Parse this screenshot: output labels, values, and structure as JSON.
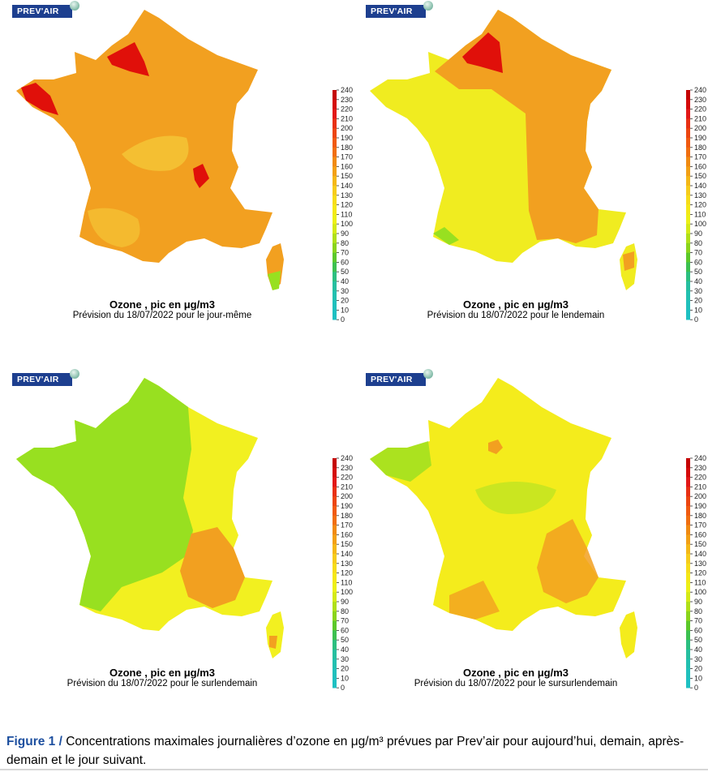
{
  "logo_text": "PREV'AIR",
  "colorbar": {
    "ticks": [
      "240",
      "230",
      "220",
      "210",
      "200",
      "190",
      "180",
      "170",
      "160",
      "150",
      "140",
      "130",
      "120",
      "110",
      "100",
      "90",
      "80",
      "70",
      "60",
      "50",
      "40",
      "30",
      "20",
      "10",
      "0"
    ],
    "colors": [
      "#c40000",
      "#d40a0a",
      "#e21818",
      "#e83014",
      "#ec4510",
      "#f05a10",
      "#f06e10",
      "#f08a12",
      "#f2a016",
      "#f4b818",
      "#f6cc1c",
      "#f6dc1a",
      "#f4e818",
      "#ecf018",
      "#d4ea18",
      "#b0e01a",
      "#8ad41c",
      "#5cc82a",
      "#3cc050",
      "#2cbf80",
      "#26bfa0",
      "#22c0b0",
      "#20c0bc",
      "#1ec0c2"
    ]
  },
  "panels": [
    {
      "title": "Ozone , pic en μg/m3",
      "subtitle": "Prévision du 18/07/2022 pour le jour-même",
      "base_color": "#f2a020",
      "light_color": "#f5cc3a",
      "hot_color": "#e0100a"
    },
    {
      "title": "Ozone , pic en μg/m3",
      "subtitle": "Prévision du 18/07/2022 pour le lendemain",
      "base_color": "#f0ec20",
      "light_color": "#f2a020",
      "hot_color": "#e0100a"
    },
    {
      "title": "Ozone , pic en μg/m3",
      "subtitle": "Prévision du 18/07/2022 pour le surlendemain",
      "base_color": "#f2f020",
      "light_color": "#98e020",
      "hot_color": "#f2a020"
    },
    {
      "title": "Ozone , pic en μg/m3",
      "subtitle": "Prévision du 18/07/2022 pour le sursurlendemain",
      "base_color": "#f4ec1c",
      "light_color": "#b8e422",
      "hot_color": "#f2a020"
    }
  ],
  "caption": {
    "lead": "Figure 1 /",
    "text": " Concentrations maximales journalières d’ozone en μg/m³ prévues par Prev’air pour aujourd’hui, demain, après-demain et le jour suivant."
  }
}
